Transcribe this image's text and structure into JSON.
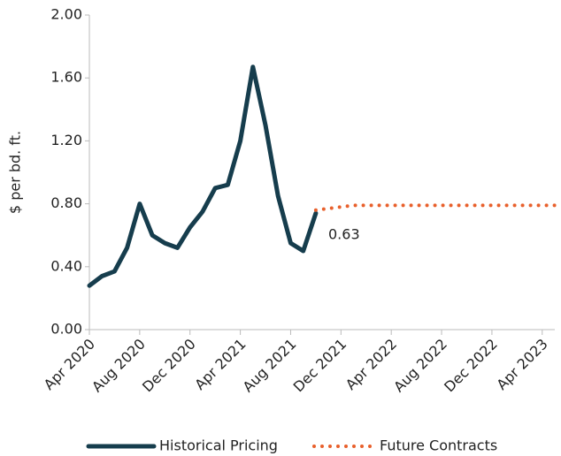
{
  "chart_data": {
    "type": "line",
    "y_label": "$ per bd. ft.",
    "x": [
      "2020-04",
      "2020-05",
      "2020-06",
      "2020-07",
      "2020-08",
      "2020-09",
      "2020-10",
      "2020-11",
      "2020-12",
      "2021-01",
      "2021-02",
      "2021-03",
      "2021-04",
      "2021-05",
      "2021-06",
      "2021-07",
      "2021-08",
      "2021-09",
      "2021-10",
      "2021-11",
      "2021-12",
      "2022-01",
      "2022-02",
      "2022-03",
      "2022-04",
      "2022-05",
      "2022-06",
      "2022-07",
      "2022-08",
      "2022-09",
      "2022-10",
      "2022-11",
      "2022-12",
      "2023-01",
      "2023-02",
      "2023-03",
      "2023-04",
      "2023-05"
    ],
    "xlim": [
      "2020-04",
      "2023-05"
    ],
    "xticks": [
      {
        "value": "2020-04",
        "label": "Apr 2020"
      },
      {
        "value": "2020-08",
        "label": "Aug 2020"
      },
      {
        "value": "2020-12",
        "label": "Dec 2020"
      },
      {
        "value": "2021-04",
        "label": "Apr 2021"
      },
      {
        "value": "2021-08",
        "label": "Aug 2021"
      },
      {
        "value": "2021-12",
        "label": "Dec 2021"
      },
      {
        "value": "2022-04",
        "label": "Apr 2022"
      },
      {
        "value": "2022-08",
        "label": "Aug 2022"
      },
      {
        "value": "2022-12",
        "label": "Dec 2022"
      },
      {
        "value": "2023-04",
        "label": "Apr 2023"
      }
    ],
    "ylim": [
      0,
      2
    ],
    "yticks": [
      {
        "value": 0,
        "label": "0.00"
      },
      {
        "value": 0.4,
        "label": "0.40"
      },
      {
        "value": 0.8,
        "label": "0.80"
      },
      {
        "value": 1.2,
        "label": "1.20"
      },
      {
        "value": 1.6,
        "label": "1.60"
      },
      {
        "value": 2,
        "label": "2.00"
      }
    ],
    "series": [
      {
        "name": "Historical Pricing",
        "color": "#163d4d",
        "style": "solid",
        "values": [
          0.28,
          0.34,
          0.37,
          0.52,
          0.8,
          0.6,
          0.55,
          0.52,
          0.65,
          0.75,
          0.9,
          0.92,
          1.2,
          1.67,
          1.3,
          0.85,
          0.55,
          0.5,
          0.74,
          null,
          null,
          null,
          null,
          null,
          null,
          null,
          null,
          null,
          null,
          null,
          null,
          null,
          null,
          null,
          null,
          null,
          null,
          null
        ]
      },
      {
        "name": "Future Contracts",
        "color": "#e8602c",
        "style": "dotted",
        "values": [
          null,
          null,
          null,
          null,
          null,
          null,
          null,
          null,
          null,
          null,
          null,
          null,
          null,
          null,
          null,
          null,
          null,
          null,
          0.76,
          0.77,
          0.78,
          0.79,
          0.79,
          0.79,
          0.79,
          0.79,
          0.79,
          0.79,
          0.79,
          0.79,
          0.79,
          0.79,
          0.79,
          0.79,
          0.79,
          0.79,
          0.79,
          0.79
        ]
      }
    ],
    "annotation": "0.63"
  }
}
